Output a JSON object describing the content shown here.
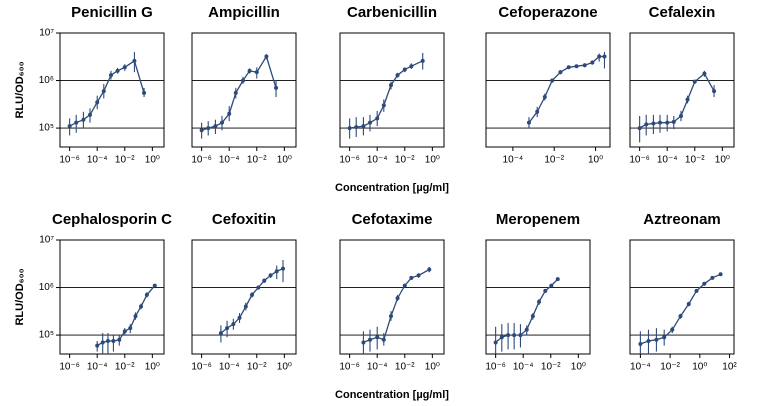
{
  "chart_data": [
    {
      "type": "line",
      "title": "Penicillin G",
      "y_label": "RLU/OD₆₀₀",
      "log_x": true,
      "log_y": true,
      "grid": true,
      "color": "#2d4a7a",
      "xlim": [
        2e-07,
        7
      ],
      "xticks": [
        {
          "value": 1e-06,
          "label": "10⁻⁶"
        },
        {
          "value": 0.0001,
          "label": "10⁻⁴"
        },
        {
          "value": 0.01,
          "label": "10⁻²"
        },
        {
          "value": 1,
          "label": "10⁰"
        }
      ],
      "ylim": [
        40000,
        10000000
      ],
      "yticks": [
        {
          "value": 100000,
          "label": "10⁵"
        },
        {
          "value": 1000000,
          "label": "10⁶"
        },
        {
          "value": 10000000,
          "label": "10⁷"
        }
      ],
      "x": [
        1e-06,
        3e-06,
        1e-05,
        3e-05,
        0.0001,
        0.0003,
        0.001,
        0.003,
        0.01,
        0.05,
        0.25
      ],
      "values": [
        110000,
        130000,
        150000,
        190000,
        350000,
        600000,
        1300000,
        1600000,
        1900000,
        2600000,
        550000
      ],
      "y_low": [
        70000,
        80000,
        100000,
        130000,
        250000,
        420000,
        1050000,
        1400000,
        1600000,
        1500000,
        450000
      ],
      "y_high": [
        160000,
        190000,
        220000,
        260000,
        480000,
        850000,
        1600000,
        1850000,
        2200000,
        4000000,
        700000
      ]
    },
    {
      "type": "line",
      "title": "Ampicillin",
      "log_x": true,
      "log_y": true,
      "grid": true,
      "color": "#2d4a7a",
      "xlim": [
        2e-07,
        7
      ],
      "xticks": [
        {
          "value": 1e-06,
          "label": "10⁻⁶"
        },
        {
          "value": 0.0001,
          "label": "10⁻⁴"
        },
        {
          "value": 0.01,
          "label": "10⁻²"
        },
        {
          "value": 1,
          "label": "10⁰"
        }
      ],
      "ylim": [
        40000,
        10000000
      ],
      "yticks": [
        100000,
        1000000,
        10000000
      ],
      "x": [
        1e-06,
        3e-06,
        1e-05,
        3e-05,
        0.0001,
        0.0003,
        0.001,
        0.003,
        0.01,
        0.05,
        0.25
      ],
      "values": [
        90000,
        100000,
        110000,
        130000,
        200000,
        550000,
        1000000,
        1600000,
        1500000,
        3200000,
        700000
      ],
      "y_low": [
        60000,
        70000,
        75000,
        90000,
        140000,
        420000,
        850000,
        1400000,
        1100000,
        2800000,
        450000
      ],
      "y_high": [
        130000,
        140000,
        150000,
        180000,
        290000,
        700000,
        1200000,
        1800000,
        1900000,
        3600000,
        1000000
      ]
    },
    {
      "type": "line",
      "title": "Carbenicillin",
      "x_label": "Concentration [µg/ml]",
      "log_x": true,
      "log_y": true,
      "grid": true,
      "color": "#2d4a7a",
      "xlim": [
        2e-07,
        7
      ],
      "xticks": [
        {
          "value": 1e-06,
          "label": "10⁻⁶"
        },
        {
          "value": 0.0001,
          "label": "10⁻⁴"
        },
        {
          "value": 0.01,
          "label": "10⁻²"
        },
        {
          "value": 1,
          "label": "10⁰"
        }
      ],
      "ylim": [
        40000,
        10000000
      ],
      "yticks": [
        100000,
        1000000,
        10000000
      ],
      "x": [
        1e-06,
        3e-06,
        1e-05,
        3e-05,
        0.0001,
        0.0003,
        0.001,
        0.003,
        0.01,
        0.03,
        0.2
      ],
      "values": [
        100000,
        105000,
        110000,
        130000,
        160000,
        300000,
        800000,
        1300000,
        1700000,
        2000000,
        2600000
      ],
      "y_low": [
        60000,
        65000,
        70000,
        85000,
        110000,
        220000,
        650000,
        1150000,
        1500000,
        1750000,
        1700000
      ],
      "y_high": [
        160000,
        170000,
        170000,
        190000,
        230000,
        400000,
        950000,
        1450000,
        1900000,
        2300000,
        3800000
      ]
    },
    {
      "type": "line",
      "title": "Cefoperazone",
      "log_x": true,
      "log_y": true,
      "grid": true,
      "color": "#2d4a7a",
      "xlim": [
        5e-06,
        5
      ],
      "xticks": [
        {
          "value": 0.0001,
          "label": "10⁻⁴"
        },
        {
          "value": 0.01,
          "label": "10⁻²"
        },
        {
          "value": 1,
          "label": "10⁰"
        }
      ],
      "ylim": [
        40000,
        10000000
      ],
      "yticks": [
        100000,
        1000000,
        10000000
      ],
      "x": [
        0.0006,
        0.0015,
        0.0035,
        0.008,
        0.02,
        0.05,
        0.12,
        0.3,
        0.7,
        1.5,
        2.7
      ],
      "values": [
        130000,
        220000,
        450000,
        1000000,
        1500000,
        1900000,
        2000000,
        2100000,
        2400000,
        3200000,
        3200000
      ],
      "y_low": [
        100000,
        170000,
        380000,
        900000,
        1350000,
        1750000,
        1850000,
        1900000,
        2150000,
        2500000,
        1800000
      ],
      "y_high": [
        170000,
        280000,
        530000,
        1100000,
        1650000,
        2050000,
        2150000,
        2300000,
        2650000,
        3700000,
        4000000
      ]
    },
    {
      "type": "line",
      "title": "Cefalexin",
      "log_x": true,
      "log_y": true,
      "grid": true,
      "color": "#2d4a7a",
      "xlim": [
        2e-07,
        7
      ],
      "xticks": [
        {
          "value": 1e-06,
          "label": "10⁻⁶"
        },
        {
          "value": 0.0001,
          "label": "10⁻⁴"
        },
        {
          "value": 0.01,
          "label": "10⁻²"
        },
        {
          "value": 1,
          "label": "10⁰"
        }
      ],
      "ylim": [
        40000,
        10000000
      ],
      "yticks": [
        100000,
        1000000,
        10000000
      ],
      "x": [
        1e-06,
        3e-06,
        1e-05,
        3e-05,
        0.0001,
        0.0003,
        0.001,
        0.003,
        0.01,
        0.05,
        0.25
      ],
      "values": [
        100000,
        120000,
        125000,
        130000,
        130000,
        135000,
        180000,
        400000,
        950000,
        1400000,
        600000
      ],
      "y_low": [
        50000,
        70000,
        75000,
        80000,
        85000,
        95000,
        140000,
        330000,
        850000,
        1200000,
        450000
      ],
      "y_high": [
        180000,
        190000,
        190000,
        190000,
        190000,
        180000,
        230000,
        480000,
        1050000,
        1600000,
        800000
      ]
    },
    {
      "type": "line",
      "title": "Cephalosporin C",
      "y_label": "RLU/OD₆₀₀",
      "log_x": true,
      "log_y": true,
      "grid": true,
      "color": "#2d4a7a",
      "xlim": [
        2e-07,
        7
      ],
      "xticks": [
        {
          "value": 1e-06,
          "label": "10⁻⁶"
        },
        {
          "value": 0.0001,
          "label": "10⁻⁴"
        },
        {
          "value": 0.01,
          "label": "10⁻²"
        },
        {
          "value": 1,
          "label": "10⁰"
        }
      ],
      "ylim": [
        40000,
        10000000
      ],
      "yticks": [
        {
          "value": 100000,
          "label": "10⁵"
        },
        {
          "value": 1000000,
          "label": "10⁶"
        },
        {
          "value": 10000000,
          "label": "10⁷"
        }
      ],
      "x": [
        0.0001,
        0.00025,
        0.0006,
        0.0015,
        0.004,
        0.01,
        0.025,
        0.06,
        0.15,
        0.4,
        1.5
      ],
      "values": [
        60000,
        70000,
        75000,
        75000,
        80000,
        120000,
        140000,
        250000,
        400000,
        700000,
        1100000
      ],
      "y_low": [
        45000,
        40000,
        40000,
        45000,
        60000,
        100000,
        110000,
        210000,
        350000,
        620000,
        1050000
      ],
      "y_high": [
        75000,
        110000,
        110000,
        100000,
        100000,
        140000,
        170000,
        300000,
        460000,
        800000,
        1150000
      ]
    },
    {
      "type": "line",
      "title": "Cefoxitin",
      "log_x": true,
      "log_y": true,
      "grid": true,
      "color": "#2d4a7a",
      "xlim": [
        2e-07,
        7
      ],
      "xticks": [
        {
          "value": 1e-06,
          "label": "10⁻⁶"
        },
        {
          "value": 0.0001,
          "label": "10⁻⁴"
        },
        {
          "value": 0.01,
          "label": "10⁻²"
        },
        {
          "value": 1,
          "label": "10⁰"
        }
      ],
      "ylim": [
        40000,
        10000000
      ],
      "yticks": [
        100000,
        1000000,
        10000000
      ],
      "x": [
        2.5e-05,
        7e-05,
        0.0002,
        0.00056,
        0.0016,
        0.0045,
        0.013,
        0.035,
        0.1,
        0.28,
        0.8
      ],
      "values": [
        110000,
        140000,
        170000,
        230000,
        400000,
        700000,
        1000000,
        1400000,
        1800000,
        2200000,
        2500000
      ],
      "y_low": [
        70000,
        90000,
        130000,
        180000,
        330000,
        620000,
        900000,
        1250000,
        1600000,
        1500000,
        1300000
      ],
      "y_high": [
        160000,
        200000,
        220000,
        290000,
        480000,
        800000,
        1100000,
        1550000,
        2000000,
        2900000,
        3800000
      ]
    },
    {
      "type": "line",
      "title": "Cefotaxime",
      "x_label": "Concentration [µg/ml]",
      "log_x": true,
      "log_y": true,
      "grid": true,
      "color": "#2d4a7a",
      "xlim": [
        2e-07,
        7
      ],
      "xticks": [
        {
          "value": 1e-06,
          "label": "10⁻⁶"
        },
        {
          "value": 0.0001,
          "label": "10⁻⁴"
        },
        {
          "value": 0.01,
          "label": "10⁻²"
        },
        {
          "value": 1,
          "label": "10⁰"
        }
      ],
      "ylim": [
        40000,
        10000000
      ],
      "yticks": [
        100000,
        1000000,
        10000000
      ],
      "x": [
        1e-05,
        3e-05,
        0.0001,
        0.0003,
        0.001,
        0.003,
        0.01,
        0.03,
        0.1,
        0.6
      ],
      "values": [
        70000,
        80000,
        90000,
        80000,
        250000,
        600000,
        1100000,
        1600000,
        1800000,
        2400000
      ],
      "y_low": [
        40000,
        45000,
        50000,
        60000,
        200000,
        520000,
        1000000,
        1450000,
        1600000,
        2100000
      ],
      "y_high": [
        120000,
        130000,
        150000,
        110000,
        320000,
        700000,
        1200000,
        1750000,
        2000000,
        2700000
      ]
    },
    {
      "type": "line",
      "title": "Meropenem",
      "log_x": true,
      "log_y": true,
      "grid": true,
      "color": "#2d4a7a",
      "xlim": [
        2e-07,
        7
      ],
      "xticks": [
        {
          "value": 1e-06,
          "label": "10⁻⁶"
        },
        {
          "value": 0.0001,
          "label": "10⁻⁴"
        },
        {
          "value": 0.01,
          "label": "10⁻²"
        },
        {
          "value": 1,
          "label": "10⁰"
        }
      ],
      "ylim": [
        40000,
        10000000
      ],
      "yticks": [
        100000,
        1000000,
        10000000
      ],
      "x": [
        1e-06,
        2.8e-06,
        8e-06,
        2.2e-05,
        6.3e-05,
        0.00018,
        0.0005,
        0.0014,
        0.004,
        0.011,
        0.032
      ],
      "values": [
        70000,
        90000,
        100000,
        100000,
        100000,
        130000,
        250000,
        500000,
        850000,
        1100000,
        1500000
      ],
      "y_low": [
        40000,
        45000,
        50000,
        50000,
        55000,
        100000,
        210000,
        430000,
        780000,
        1050000,
        1450000
      ],
      "y_high": [
        150000,
        170000,
        180000,
        180000,
        170000,
        160000,
        290000,
        570000,
        920000,
        1150000,
        1550000
      ]
    },
    {
      "type": "line",
      "title": "Aztreonam",
      "log_x": true,
      "log_y": true,
      "grid": true,
      "color": "#2d4a7a",
      "xlim": [
        2e-05,
        200
      ],
      "xticks": [
        {
          "value": 0.0001,
          "label": "10⁻⁴"
        },
        {
          "value": 0.01,
          "label": "10⁻²"
        },
        {
          "value": 1,
          "label": "10⁰"
        },
        {
          "value": 100,
          "label": "10²"
        }
      ],
      "ylim": [
        40000,
        10000000
      ],
      "yticks": [
        100000,
        1000000,
        10000000
      ],
      "x": [
        0.0001,
        0.00035,
        0.0012,
        0.004,
        0.014,
        0.05,
        0.18,
        0.6,
        2,
        7,
        25
      ],
      "values": [
        65000,
        75000,
        80000,
        90000,
        130000,
        250000,
        450000,
        850000,
        1200000,
        1600000,
        1900000
      ],
      "y_low": [
        35000,
        40000,
        45000,
        60000,
        110000,
        220000,
        400000,
        780000,
        1100000,
        1500000,
        1750000
      ],
      "y_high": [
        120000,
        130000,
        140000,
        130000,
        150000,
        280000,
        500000,
        920000,
        1300000,
        1700000,
        2050000
      ]
    }
  ]
}
